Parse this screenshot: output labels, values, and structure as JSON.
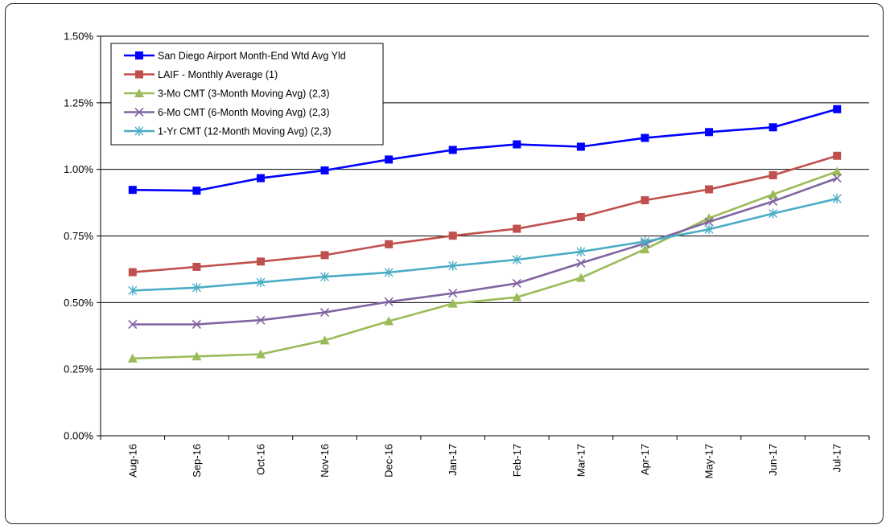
{
  "chart_data": {
    "type": "line",
    "categories": [
      "Aug-16",
      "Sep-16",
      "Oct-16",
      "Nov-16",
      "Dec-16",
      "Jan-17",
      "Feb-17",
      "Mar-17",
      "Apr-17",
      "May-17",
      "Jun-17",
      "Jul-17"
    ],
    "ylim": [
      0,
      1.5
    ],
    "yticks": [
      0,
      0.25,
      0.5,
      0.75,
      1.0,
      1.25,
      1.5
    ],
    "ytick_labels": [
      "0.00%",
      "0.25%",
      "0.50%",
      "0.75%",
      "1.00%",
      "1.25%",
      "1.50%"
    ],
    "grid": true,
    "legend_position": "top-left",
    "series": [
      {
        "name": "San Diego Airport Month-End Wtd Avg Yld",
        "color": "#0000ff",
        "marker": "square",
        "values": [
          0.923,
          0.92,
          0.967,
          0.996,
          1.037,
          1.073,
          1.094,
          1.085,
          1.118,
          1.14,
          1.158,
          1.226
        ]
      },
      {
        "name": "LAIF - Monthly Average (1)",
        "color": "#c0504d",
        "marker": "square",
        "values": [
          0.614,
          0.634,
          0.654,
          0.678,
          0.719,
          0.751,
          0.777,
          0.821,
          0.884,
          0.925,
          0.978,
          1.051
        ]
      },
      {
        "name": "3-Mo CMT (3-Month Moving Avg) (2,3)",
        "color": "#9bbb59",
        "marker": "triangle",
        "values": [
          0.29,
          0.298,
          0.306,
          0.358,
          0.43,
          0.496,
          0.52,
          0.593,
          0.7,
          0.817,
          0.906,
          0.992
        ]
      },
      {
        "name": "6-Mo CMT (6-Month Moving Avg) (2,3)",
        "color": "#8064a2",
        "marker": "x",
        "values": [
          0.418,
          0.418,
          0.434,
          0.463,
          0.503,
          0.535,
          0.572,
          0.648,
          0.722,
          0.803,
          0.88,
          0.967
        ]
      },
      {
        "name": "1-Yr CMT (12-Month Moving Avg) (2,3)",
        "color": "#4bacc6",
        "marker": "asterisk",
        "values": [
          0.545,
          0.556,
          0.576,
          0.597,
          0.613,
          0.638,
          0.661,
          0.691,
          0.729,
          0.775,
          0.834,
          0.89
        ]
      }
    ]
  }
}
